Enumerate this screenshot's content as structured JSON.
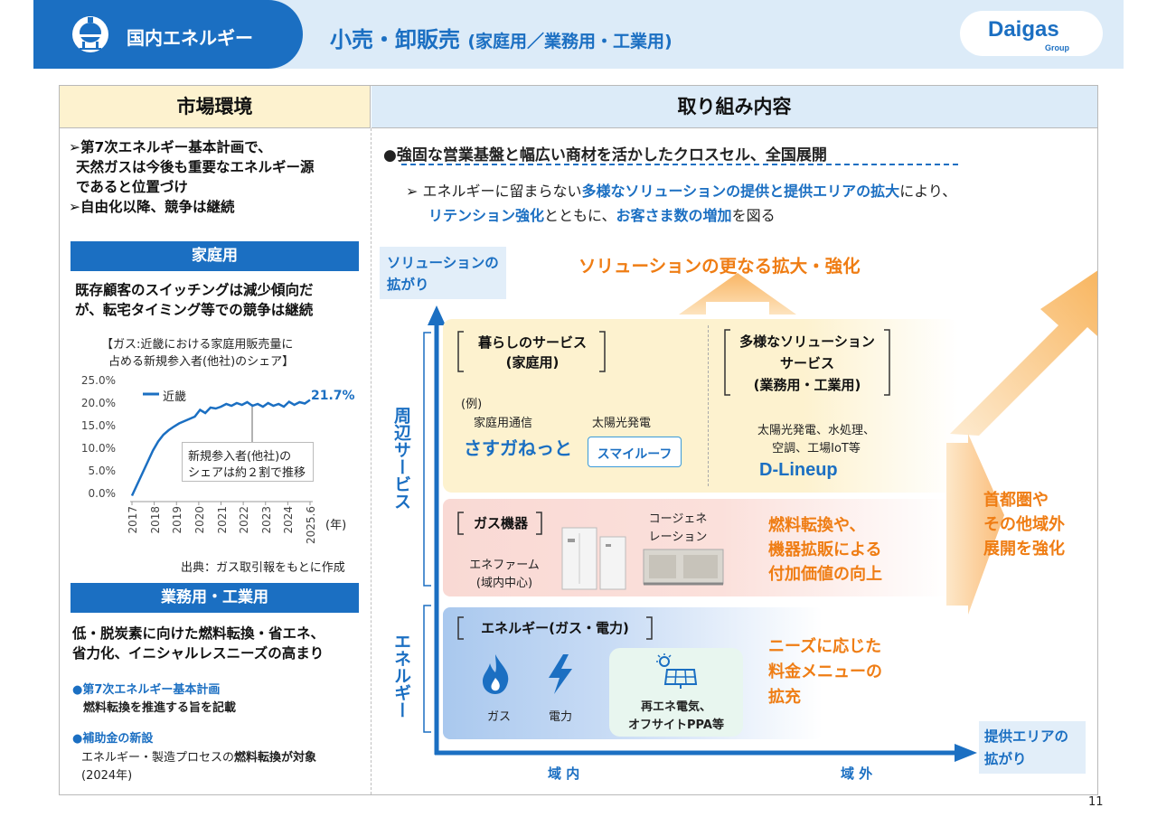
{
  "header": {
    "section": "国内エネルギー",
    "title": "小売・卸販売",
    "subtitle": "(家庭用／業務用・工業用)",
    "logo": "Daigas",
    "logo_sub": "Group",
    "icon": "gas-tank-icon"
  },
  "left": {
    "heading": "市場環境",
    "intro": [
      "➢第7次エネルギー基本計画で、",
      "天然ガスは今後も重要なエネルギー源",
      "であると位置づけ",
      "➢自由化以降、競争は継続"
    ],
    "home": {
      "band": "家庭用",
      "desc": [
        "既存顧客のスイッチングは減少傾向だ",
        "が、転宅タイミング等での競争は継続"
      ],
      "chart_title": [
        "【ガス:近畿における家庭用販売量に",
        "占める新規参入者(他社)のシェア】"
      ],
      "legend": "近畿",
      "last_label": "21.7%",
      "callout": [
        "新規参入者(他社)の",
        "シェアは約２割で推移"
      ],
      "year_unit": "(年)",
      "source": "出典：ガス取引報をもとに作成"
    },
    "biz": {
      "band": "業務用・工業用",
      "desc": [
        "低・脱炭素に向けた燃料転換・省エネ、",
        "省力化、イニシャルレスニーズの高まり"
      ],
      "bullet1_title": "●第7次エネルギー基本計画",
      "bullet1_text": "燃料転換を推進する旨を記載",
      "bullet2_title": "●補助金の新設",
      "bullet2_text_a": "エネルギー・製造プロセスの",
      "bullet2_text_b": "燃料転換が対象",
      "bullet2_year": "(2024年)"
    }
  },
  "chart_data": {
    "type": "line",
    "title": "【ガス:近畿における家庭用販売量に占める新規参入者(他社)のシェア】",
    "xlabel": "(年)",
    "ylabel": "",
    "yticks": [
      "0.0%",
      "5.0%",
      "10.0%",
      "15.0%",
      "20.0%",
      "25.0%"
    ],
    "xticks": [
      "2017",
      "2018",
      "2019",
      "2020",
      "2021",
      "2022",
      "2023",
      "2024",
      "2025.6"
    ],
    "ylim": [
      0,
      25
    ],
    "xlim": [
      2017,
      2025.5
    ],
    "series": [
      {
        "name": "近畿",
        "x": [
          2017.0,
          2017.25,
          2017.5,
          2017.75,
          2018.0,
          2018.25,
          2018.5,
          2018.75,
          2019.0,
          2019.25,
          2019.5,
          2019.75,
          2020.0,
          2020.25,
          2020.5,
          2020.75,
          2021.0,
          2021.25,
          2021.5,
          2021.75,
          2022.0,
          2022.25,
          2022.5,
          2022.75,
          2023.0,
          2023.25,
          2023.5,
          2023.75,
          2024.0,
          2024.25,
          2024.5,
          2024.75,
          2025.0,
          2025.25,
          2025.5
        ],
        "values": [
          0.5,
          3.0,
          5.5,
          8.0,
          10.5,
          12.5,
          14.0,
          15.0,
          15.8,
          16.5,
          17.0,
          17.5,
          18.0,
          19.5,
          18.8,
          20.0,
          19.8,
          20.2,
          20.8,
          20.4,
          21.0,
          20.6,
          21.2,
          20.4,
          20.8,
          20.2,
          21.0,
          20.4,
          20.8,
          20.2,
          21.3,
          20.6,
          21.2,
          20.9,
          21.7
        ]
      }
    ],
    "annotations": [
      "21.7%",
      "新規参入者(他社)のシェアは約２割で推移"
    ],
    "grid": false,
    "legend": "top-left"
  },
  "right": {
    "heading": "取り組み内容",
    "bullet": "●強固な営業基盤と幅広い商材を活かしたクロスセル、全国展開",
    "sub": {
      "prefix": "➢ エネルギーに留まらない",
      "em1": "多様なソリューションの提供と提供エリアの拡大",
      "mid": "により、",
      "em2": "リテンション強化",
      "mid2": "とともに、",
      "em3": "お客さま数の増加",
      "suffix": "を図る"
    },
    "y_axis_label": [
      "ソリューションの",
      "拡がり"
    ],
    "top_arrow_label": "ソリューションの更なる拡大・強化",
    "v_label_top": "周辺サービス",
    "v_label_bottom": "エネルギー",
    "x_in": "域 内",
    "x_out": "域 外",
    "x_axis_label": [
      "提供エリアの",
      "拡がり"
    ],
    "right_arrow_label": [
      "首都圏や",
      "その他域外",
      "展開を強化"
    ],
    "life": {
      "title": [
        "暮らしのサービス",
        "(家庭用)"
      ],
      "ex": "(例)",
      "item1": "家庭用通信",
      "item1_logo": "さすガねっと",
      "item2": "太陽光発電",
      "item2_logo": "スマイルーフ"
    },
    "solution": {
      "title": [
        "多様なソリューション",
        "サービス",
        "(業務用・工業用)"
      ],
      "desc": [
        "太陽光発電、水処理、",
        "空調、工場IoT等"
      ],
      "logo": "D-Lineup"
    },
    "equip": {
      "title": "ガス機器",
      "enefarm": [
        "エネファーム",
        "(域内中心)"
      ],
      "cogen": [
        "コージェネ",
        "レーション"
      ],
      "value": [
        "燃料転換や、",
        "機器拡販による",
        "付加価値の向上"
      ]
    },
    "energy": {
      "title": "エネルギー(ガス・電力)",
      "gas": "ガス",
      "power": "電力",
      "renew": [
        "再エネ電気、",
        "オフサイトPPA等"
      ],
      "menu": [
        "ニーズに応じた",
        "料金メニューの",
        "拡充"
      ]
    }
  },
  "page_number": "11"
}
